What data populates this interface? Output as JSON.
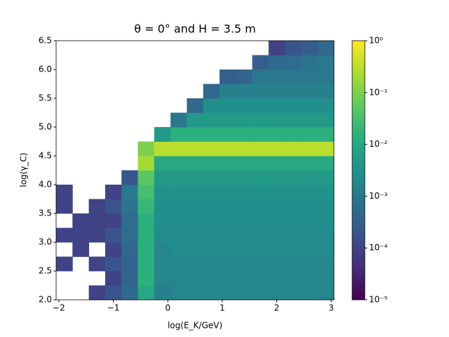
{
  "chart_data": {
    "type": "heatmap",
    "title": "θ = 0° and H = 3.5 m",
    "xlabel": "log(E_K/GeV)",
    "ylabel": "log(γ_C)",
    "colormap": "viridis",
    "color_scale": "log",
    "xlim": [
      -2.05,
      3.05
    ],
    "ylim": [
      2.0,
      6.5
    ],
    "xticks": [
      {
        "value": -2,
        "label": "−2"
      },
      {
        "value": -1,
        "label": "−1"
      },
      0,
      1,
      2,
      3
    ],
    "yticks": [
      {
        "value": 2,
        "label": "2.0"
      },
      2.5,
      {
        "value": 3,
        "label": "3.0"
      },
      3.5,
      {
        "value": 4,
        "label": "4.0"
      },
      4.5,
      {
        "value": 5,
        "label": "5.0"
      },
      5.5,
      {
        "value": 6,
        "label": "6.0"
      },
      6.5
    ],
    "clim": [
      1e-05,
      1
    ],
    "cticks": [
      {
        "value": 1e-05,
        "label": "10⁻⁵"
      },
      {
        "value": 0.0001,
        "label": "10⁻⁴"
      },
      {
        "value": 0.001,
        "label": "10⁻³"
      },
      {
        "value": 0.01,
        "label": "10⁻²"
      },
      {
        "value": 0.1,
        "label": "10⁻¹"
      },
      {
        "value": 1,
        "label": "10⁰"
      }
    ],
    "xbins": [
      -2.05,
      -1.75,
      -1.45,
      -1.15,
      -0.85,
      -0.55,
      -0.25,
      0.05,
      0.35,
      0.65,
      0.95,
      1.25,
      1.55,
      1.85,
      2.15,
      2.45,
      2.75,
      3.05
    ],
    "ybins": [
      2.0,
      2.25,
      2.5,
      2.75,
      3.0,
      3.25,
      3.5,
      3.75,
      4.0,
      4.25,
      4.5,
      4.75,
      5.0,
      5.25,
      5.5,
      5.75,
      6.0,
      6.25,
      6.5
    ],
    "z": [
      [
        null,
        null,
        0.0001,
        0.0002,
        0.0005,
        0.01,
        0.0015,
        0.002,
        0.002,
        0.002,
        0.002,
        0.002,
        0.002,
        0.002,
        0.002,
        0.002,
        0.002
      ],
      [
        null,
        null,
        null,
        0.0001,
        0.0004,
        0.015,
        0.002,
        0.002,
        0.002,
        0.002,
        0.002,
        0.002,
        0.002,
        0.002,
        0.002,
        0.002,
        0.002
      ],
      [
        0.0001,
        null,
        0.0001,
        0.0002,
        0.0004,
        0.015,
        0.002,
        0.002,
        0.002,
        0.002,
        0.002,
        0.002,
        0.002,
        0.002,
        0.002,
        0.002,
        0.002
      ],
      [
        null,
        0.0001,
        null,
        0.0001,
        0.0005,
        0.015,
        0.002,
        0.0025,
        0.0025,
        0.0025,
        0.0025,
        0.0025,
        0.0025,
        0.0025,
        0.0025,
        0.0025,
        0.0025
      ],
      [
        0.0001,
        0.0001,
        0.0001,
        0.0002,
        0.0006,
        0.015,
        0.0025,
        0.0025,
        0.0025,
        0.0025,
        0.0025,
        0.0025,
        0.0025,
        0.0025,
        0.0025,
        0.0025,
        0.0025
      ],
      [
        null,
        0.0001,
        0.0001,
        0.0001,
        0.0006,
        0.015,
        0.003,
        0.003,
        0.003,
        0.003,
        0.003,
        0.003,
        0.003,
        0.003,
        0.003,
        0.003,
        0.003
      ],
      [
        0.0001,
        null,
        0.0001,
        0.0002,
        0.0008,
        0.02,
        0.003,
        0.003,
        0.003,
        0.003,
        0.003,
        0.003,
        0.003,
        0.003,
        0.003,
        0.003,
        0.003
      ],
      [
        0.0001,
        null,
        null,
        0.0001,
        0.001,
        0.03,
        0.0035,
        0.0035,
        0.0035,
        0.0035,
        0.0035,
        0.0035,
        0.0035,
        0.0035,
        0.0035,
        0.0035,
        0.0035
      ],
      [
        null,
        null,
        null,
        null,
        0.0002,
        0.05,
        0.005,
        0.005,
        0.005,
        0.005,
        0.005,
        0.005,
        0.005,
        0.005,
        0.005,
        0.005,
        0.005
      ],
      [
        null,
        null,
        null,
        null,
        null,
        0.2,
        0.01,
        0.01,
        0.01,
        0.01,
        0.01,
        0.01,
        0.01,
        0.01,
        0.01,
        0.01,
        0.01
      ],
      [
        null,
        null,
        null,
        null,
        null,
        0.1,
        0.3,
        0.3,
        0.3,
        0.3,
        0.3,
        0.3,
        0.3,
        0.3,
        0.3,
        0.3,
        0.3
      ],
      [
        null,
        null,
        null,
        null,
        null,
        null,
        0.005,
        0.015,
        0.015,
        0.015,
        0.015,
        0.015,
        0.015,
        0.015,
        0.015,
        0.015,
        0.015
      ],
      [
        null,
        null,
        null,
        null,
        null,
        null,
        null,
        0.001,
        0.005,
        0.005,
        0.005,
        0.005,
        0.005,
        0.005,
        0.005,
        0.005,
        0.005
      ],
      [
        null,
        null,
        null,
        null,
        null,
        null,
        null,
        null,
        0.0005,
        0.003,
        0.003,
        0.003,
        0.003,
        0.003,
        0.003,
        0.003,
        0.003
      ],
      [
        null,
        null,
        null,
        null,
        null,
        null,
        null,
        null,
        null,
        0.0005,
        0.0015,
        0.0015,
        0.0015,
        0.0015,
        0.0015,
        0.0015,
        0.0015
      ],
      [
        null,
        null,
        null,
        null,
        null,
        null,
        null,
        null,
        null,
        null,
        0.0003,
        0.0004,
        0.001,
        0.001,
        0.001,
        0.001,
        0.001
      ],
      [
        null,
        null,
        null,
        null,
        null,
        null,
        null,
        null,
        null,
        null,
        null,
        null,
        0.0003,
        0.0005,
        0.0006,
        0.0008,
        0.001
      ],
      [
        null,
        null,
        null,
        null,
        null,
        null,
        null,
        null,
        null,
        null,
        null,
        null,
        null,
        0.0001,
        0.0002,
        0.0003,
        0.0005
      ]
    ]
  }
}
